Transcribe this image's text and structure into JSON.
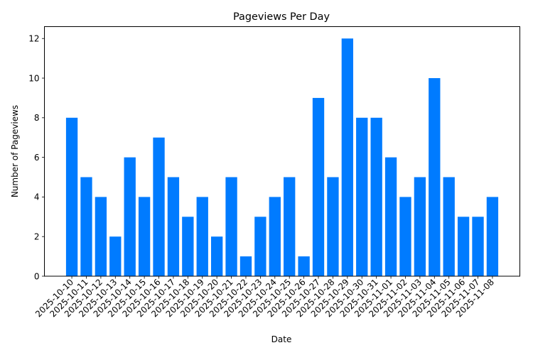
{
  "chart_data": {
    "type": "bar",
    "title": "Pageviews Per Day",
    "xlabel": "Date",
    "ylabel": "Number of Pageviews",
    "categories": [
      "2025-10-10",
      "2025-10-11",
      "2025-10-12",
      "2025-10-13",
      "2025-10-14",
      "2025-10-15",
      "2025-10-16",
      "2025-10-17",
      "2025-10-18",
      "2025-10-19",
      "2025-10-20",
      "2025-10-21",
      "2025-10-22",
      "2025-10-23",
      "2025-10-24",
      "2025-10-25",
      "2025-10-26",
      "2025-10-27",
      "2025-10-28",
      "2025-10-29",
      "2025-10-30",
      "2025-10-31",
      "2025-11-01",
      "2025-11-02",
      "2025-11-03",
      "2025-11-04",
      "2025-11-05",
      "2025-11-06",
      "2025-11-07",
      "2025-11-08"
    ],
    "values": [
      8,
      5,
      4,
      2,
      6,
      4,
      7,
      5,
      3,
      4,
      2,
      5,
      1,
      3,
      4,
      5,
      1,
      9,
      5,
      12,
      8,
      8,
      6,
      4,
      5,
      10,
      5,
      3,
      3,
      4
    ],
    "ylim": [
      0,
      12.6
    ],
    "yticks": [
      0,
      2,
      4,
      6,
      8,
      10,
      12
    ],
    "xtick_rotation": 45,
    "grid": false,
    "legend": null,
    "bar_color": "#007bff"
  }
}
